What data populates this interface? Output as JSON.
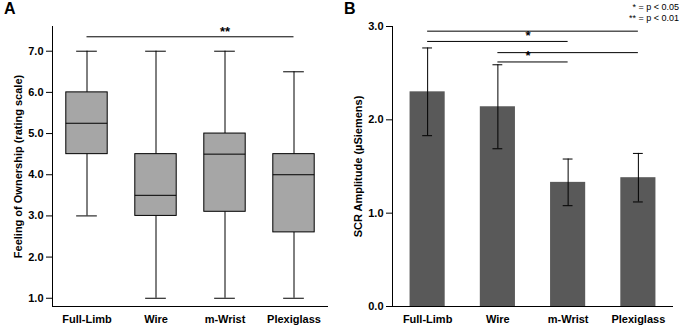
{
  "chart_data": [
    {
      "type": "box",
      "title": "A",
      "y_label": "Feeling of Ownership (rating scale)",
      "categories": [
        "Full-Limb",
        "Wire",
        "m-Wrist",
        "Plexiglass"
      ],
      "boxes": {
        "min": [
          3,
          1,
          1,
          1
        ],
        "q1": [
          4.5,
          3,
          3.1,
          2.6
        ],
        "median": [
          5.25,
          3.5,
          4.5,
          4
        ],
        "q3": [
          6,
          4.5,
          5,
          4.5
        ],
        "max": [
          7,
          7,
          7,
          6.5
        ]
      },
      "color": "#a6a6a6",
      "ylim": [
        0.8,
        7.6
      ],
      "yticks": [
        1,
        2,
        3,
        4,
        5,
        6,
        7
      ],
      "comparisons": [
        {
          "x1": "Full-Limb",
          "x2": "Plexiglass",
          "y": 7.35
        }
      ],
      "annotations": [
        {
          "x": "m-Wrist",
          "y": 7.38,
          "label": "**"
        }
      ]
    },
    {
      "type": "bar",
      "title": "B",
      "y_label": "SCR Amplitude (µSiemens)",
      "categories": [
        "Full-Limb",
        "Wire",
        "m-Wrist",
        "Plexiglass"
      ],
      "values": [
        2.3,
        2.14,
        1.33,
        1.38
      ],
      "errors": [
        0.47,
        0.45,
        0.25,
        0.26
      ],
      "color": "#595959",
      "ylim": [
        0,
        3
      ],
      "yticks": [
        0,
        1,
        2,
        3
      ],
      "comparisons": [
        {
          "x1": "Full-Limb",
          "x2": "Plexiglass",
          "y": 2.95
        },
        {
          "x1": "Full-Limb",
          "x2": "m-Wrist",
          "y": 2.84
        },
        {
          "x1": "Wire",
          "x2": "Plexiglass",
          "y": 2.72
        },
        {
          "x1": "Wire",
          "x2": "m-Wrist",
          "y": 2.62
        }
      ],
      "annotations": [
        {
          "x": "m-Wrist",
          "y": 2.86,
          "label": "*"
        },
        {
          "x": "m-Wrist",
          "y": 2.64,
          "label": "*"
        }
      ],
      "notes": [
        "* = p < 0.05",
        "** = p < 0.01"
      ]
    }
  ]
}
